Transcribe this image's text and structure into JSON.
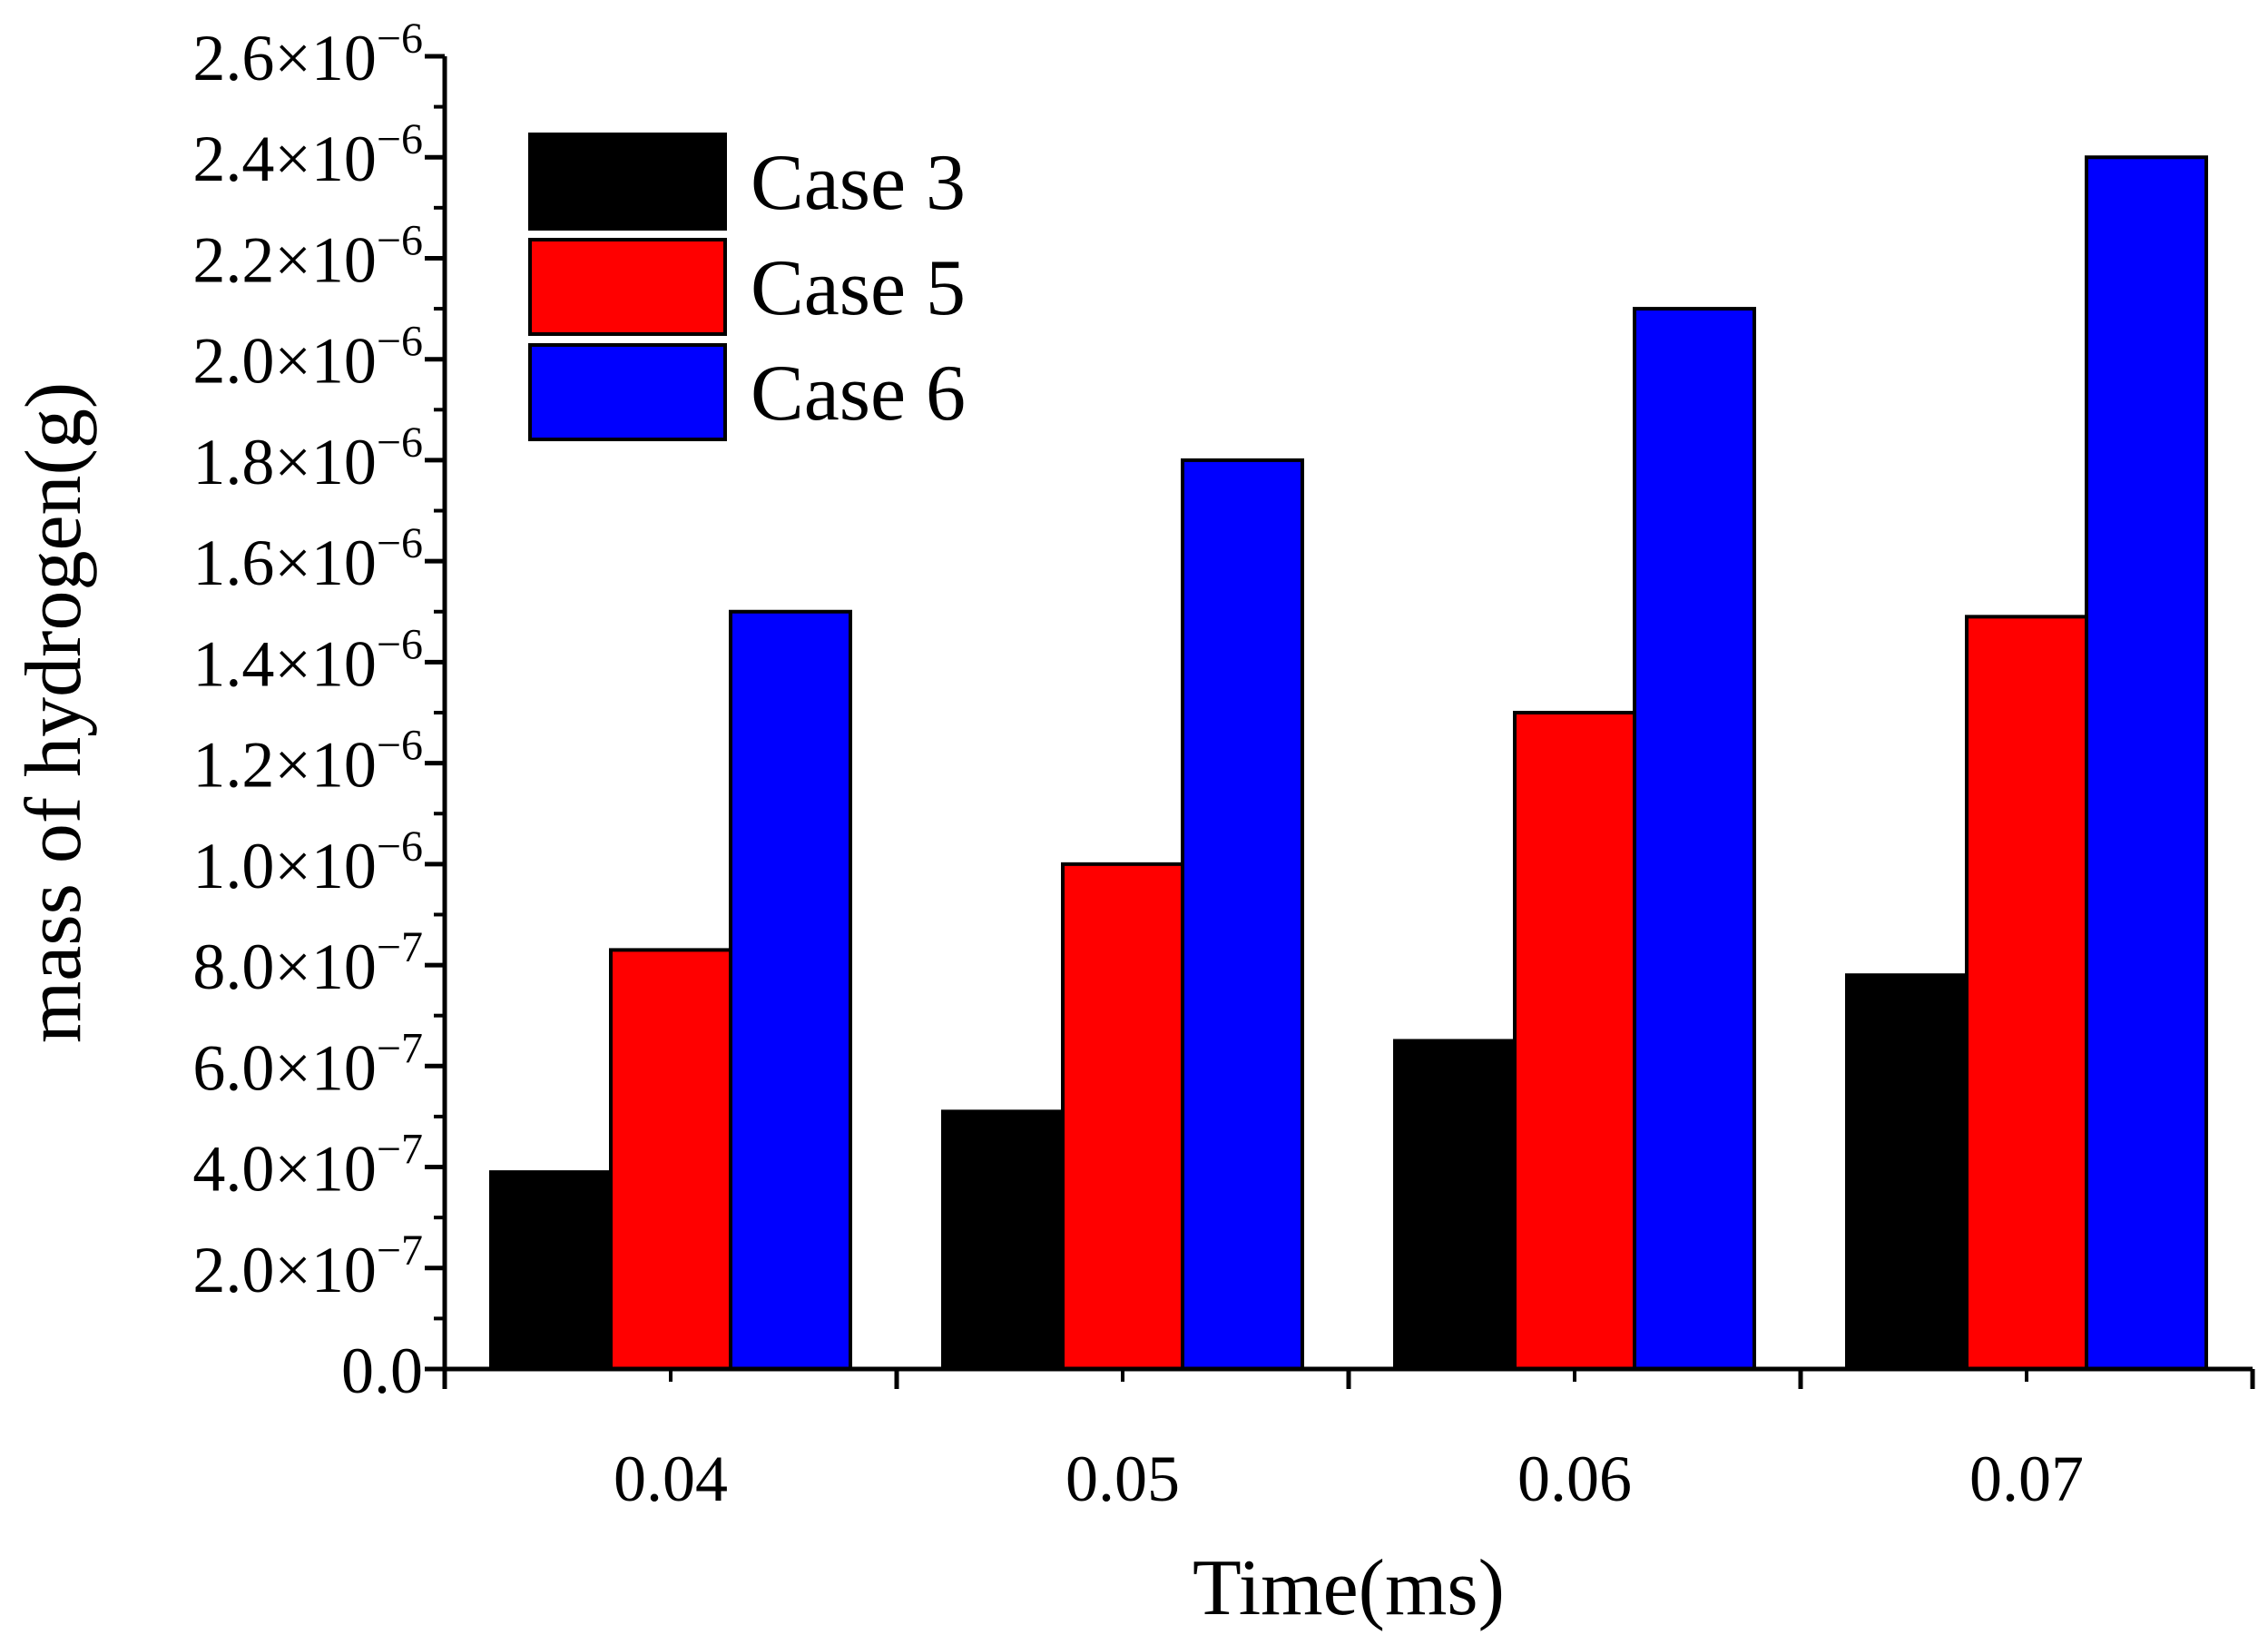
{
  "chart_data": {
    "type": "bar",
    "title": "",
    "xlabel": "Time(ms)",
    "ylabel": "mass of hydrogen(g)",
    "categories": [
      "0.04",
      "0.05",
      "0.06",
      "0.07"
    ],
    "series": [
      {
        "name": "Case 3",
        "color": "#000000",
        "values": [
          3.9e-07,
          5.1e-07,
          6.5e-07,
          7.8e-07
        ]
      },
      {
        "name": "Case 5",
        "color": "#ff0000",
        "values": [
          8.3e-07,
          1e-06,
          1.3e-06,
          1.49e-06
        ]
      },
      {
        "name": "Case 6",
        "color": "#0000ff",
        "values": [
          1.5e-06,
          1.8e-06,
          2.1e-06,
          2.4e-06
        ]
      }
    ],
    "ylim": [
      0,
      2.6e-06
    ],
    "yticks": [
      {
        "value": 0,
        "mantissa": "0.0",
        "exponent": ""
      },
      {
        "value": 2e-07,
        "mantissa": "2.0×10",
        "exponent": "−7"
      },
      {
        "value": 4e-07,
        "mantissa": "4.0×10",
        "exponent": "−7"
      },
      {
        "value": 6e-07,
        "mantissa": "6.0×10",
        "exponent": "−7"
      },
      {
        "value": 8e-07,
        "mantissa": "8.0×10",
        "exponent": "−7"
      },
      {
        "value": 1e-06,
        "mantissa": "1.0×10",
        "exponent": "−6"
      },
      {
        "value": 1.2e-06,
        "mantissa": "1.2×10",
        "exponent": "−6"
      },
      {
        "value": 1.4e-06,
        "mantissa": "1.4×10",
        "exponent": "−6"
      },
      {
        "value": 1.6e-06,
        "mantissa": "1.6×10",
        "exponent": "−6"
      },
      {
        "value": 1.8e-06,
        "mantissa": "1.8×10",
        "exponent": "−6"
      },
      {
        "value": 2e-06,
        "mantissa": "2.0×10",
        "exponent": "−6"
      },
      {
        "value": 2.2e-06,
        "mantissa": "2.2×10",
        "exponent": "−6"
      },
      {
        "value": 2.4e-06,
        "mantissa": "2.4×10",
        "exponent": "−6"
      },
      {
        "value": 2.6e-06,
        "mantissa": "2.6×10",
        "exponent": "−6"
      }
    ],
    "legend": {
      "position": "top-left",
      "entries": [
        "Case 3",
        "Case 5",
        "Case 6"
      ]
    },
    "grid": false
  }
}
